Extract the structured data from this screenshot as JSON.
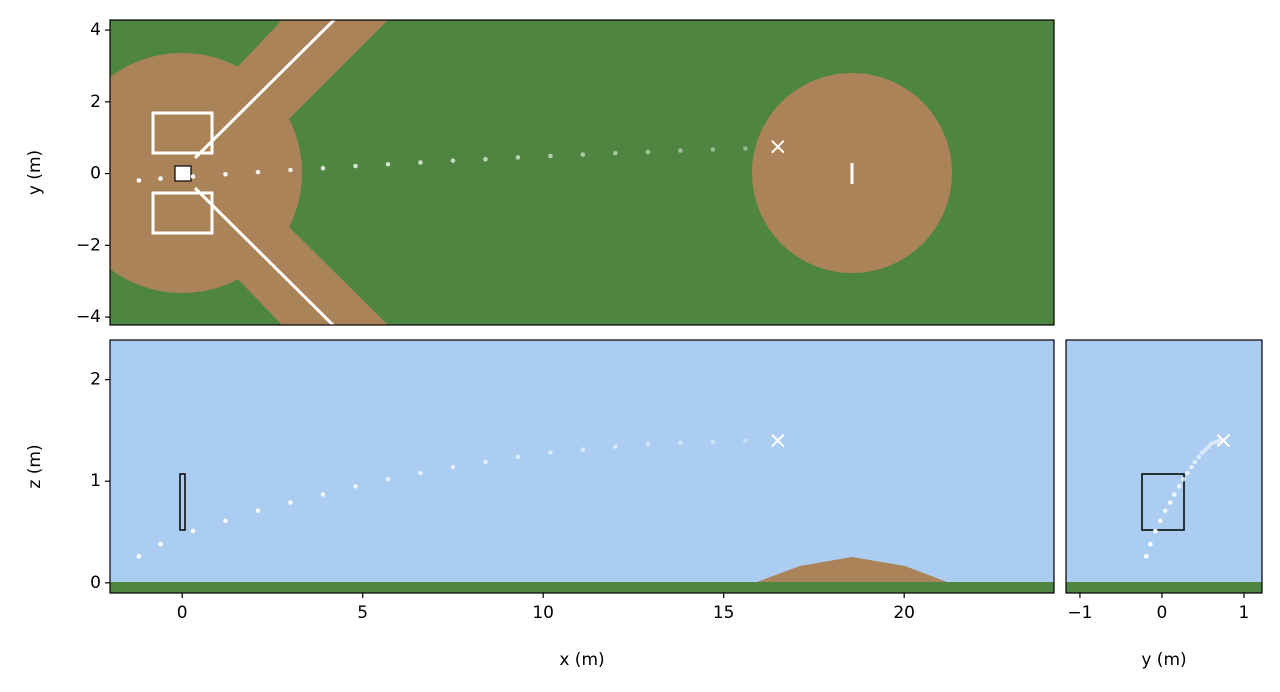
{
  "chart_data": [
    {
      "type": "scatter",
      "ylabel": "y (m)",
      "xlim": [
        -2,
        24.15
      ],
      "ylim": [
        -4.22,
        4.28
      ],
      "yticks": [
        {
          "value": -4,
          "label": "−4"
        },
        {
          "value": -2,
          "label": "−2"
        },
        0,
        2,
        4
      ],
      "series": [
        {
          "color": "#ffffff",
          "x": [
            16.5,
            15.6,
            14.7,
            13.8,
            12.9,
            12.0,
            11.1,
            10.2,
            9.3,
            8.4,
            7.5,
            6.6,
            5.7,
            4.8,
            3.9,
            3.0,
            2.1,
            1.2,
            0.3,
            -0.6,
            -1.2
          ],
          "values": [
            0.73,
            0.7,
            0.67,
            0.64,
            0.6,
            0.57,
            0.53,
            0.49,
            0.45,
            0.4,
            0.36,
            0.31,
            0.26,
            0.21,
            0.15,
            0.1,
            0.04,
            -0.02,
            -0.08,
            -0.14,
            -0.19
          ]
        }
      ],
      "release": {
        "x": 16.5,
        "y": 0.75,
        "color": "#ffffff"
      }
    },
    {
      "type": "scatter",
      "xlabel": "x (m)",
      "ylabel": "z (m)",
      "xlim": [
        -2,
        24.15
      ],
      "ylim": [
        -0.1,
        2.39
      ],
      "xticks": [
        0,
        5,
        10,
        15,
        20
      ],
      "yticks": [
        0,
        1,
        2
      ],
      "series": [
        {
          "color": "#ffffff",
          "x": [
            16.5,
            15.6,
            14.7,
            13.8,
            12.9,
            12.0,
            11.1,
            10.2,
            9.3,
            8.4,
            7.5,
            6.6,
            5.7,
            4.8,
            3.9,
            3.0,
            2.1,
            1.2,
            0.3,
            -0.6,
            -1.2
          ],
          "values": [
            1.4,
            1.4,
            1.39,
            1.38,
            1.37,
            1.34,
            1.31,
            1.28,
            1.24,
            1.19,
            1.14,
            1.08,
            1.02,
            0.95,
            0.87,
            0.79,
            0.71,
            0.61,
            0.51,
            0.38,
            0.26
          ]
        }
      ],
      "release": {
        "x": 16.5,
        "y": 1.4,
        "color": "#ffffff"
      }
    },
    {
      "type": "scatter",
      "xlabel": "y (m)",
      "xlim": [
        -1.17,
        1.22
      ],
      "ylim": [
        -0.1,
        2.39
      ],
      "xticks": [
        {
          "value": -1,
          "label": "−1"
        },
        0,
        1
      ],
      "series": [
        {
          "color": "#ffffff",
          "x": [
            0.73,
            0.7,
            0.67,
            0.64,
            0.6,
            0.57,
            0.53,
            0.49,
            0.45,
            0.4,
            0.36,
            0.31,
            0.26,
            0.21,
            0.15,
            0.1,
            0.04,
            -0.02,
            -0.08,
            -0.14,
            -0.19
          ],
          "values": [
            1.4,
            1.4,
            1.39,
            1.38,
            1.37,
            1.34,
            1.31,
            1.28,
            1.24,
            1.19,
            1.14,
            1.08,
            1.02,
            0.95,
            0.87,
            0.79,
            0.71,
            0.61,
            0.51,
            0.38,
            0.26
          ]
        }
      ],
      "release": {
        "x": 0.75,
        "y": 1.4,
        "color": "#ffffff"
      }
    }
  ]
}
